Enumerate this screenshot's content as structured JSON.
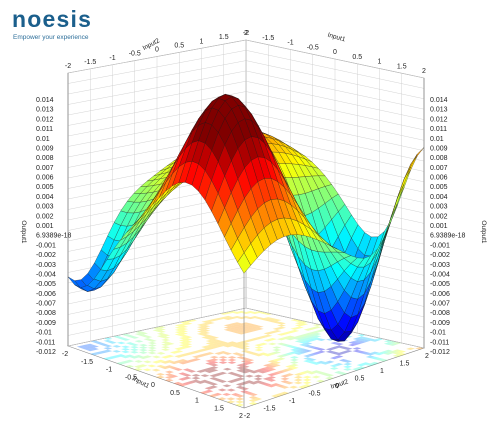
{
  "brand": {
    "name": "noesis",
    "tagline": "Empower your experience",
    "colors": {
      "primary": "#1b5f8c",
      "accent": "#4a9bd0"
    }
  },
  "chart_data": {
    "type": "surface-3d",
    "title": "",
    "colormap": "jet",
    "contour_projection_on_floor": true,
    "grid": true,
    "x": {
      "label": "Input1",
      "range": [
        -2,
        2
      ],
      "ticks": [
        "-2",
        "-1.5",
        "-1",
        "-0.5",
        "0",
        "0.5",
        "1",
        "1.5",
        "2"
      ]
    },
    "y": {
      "label": "Input2",
      "range": [
        -2,
        2
      ],
      "ticks": [
        "-2",
        "-1.5",
        "-1",
        "-0.5",
        "0",
        "0.5",
        "1",
        "1.5",
        "2"
      ]
    },
    "z": {
      "label": "Output1",
      "range": [
        -0.012,
        0.014
      ],
      "ticks": [
        "0.014",
        "0.013",
        "0.012",
        "0.011",
        "0.01",
        "0.009",
        "0.008",
        "0.007",
        "0.006",
        "0.005",
        "0.004",
        "0.003",
        "0.002",
        "0.001",
        "6.9389e-18",
        "-0.001",
        "-0.002",
        "-0.003",
        "-0.004",
        "-0.005",
        "-0.006",
        "-0.007",
        "-0.008",
        "-0.009",
        "-0.01",
        "-0.011",
        "-0.012"
      ]
    },
    "surface_grid": 27,
    "surface_features": [
      {
        "kind": "peak",
        "at": [
          0.8,
          -1.2
        ],
        "value": 0.0142
      },
      {
        "kind": "ridge_high",
        "at": [
          2,
          1.8
        ],
        "value": 0.006
      },
      {
        "kind": "trough",
        "at": [
          1.0,
          1.1
        ],
        "value": -0.0115
      },
      {
        "kind": "trough",
        "at": [
          -1.7,
          -1.7
        ],
        "value": -0.0035
      },
      {
        "kind": "local_high",
        "at": [
          -1.2,
          1.2
        ],
        "value": 0.004
      }
    ]
  }
}
